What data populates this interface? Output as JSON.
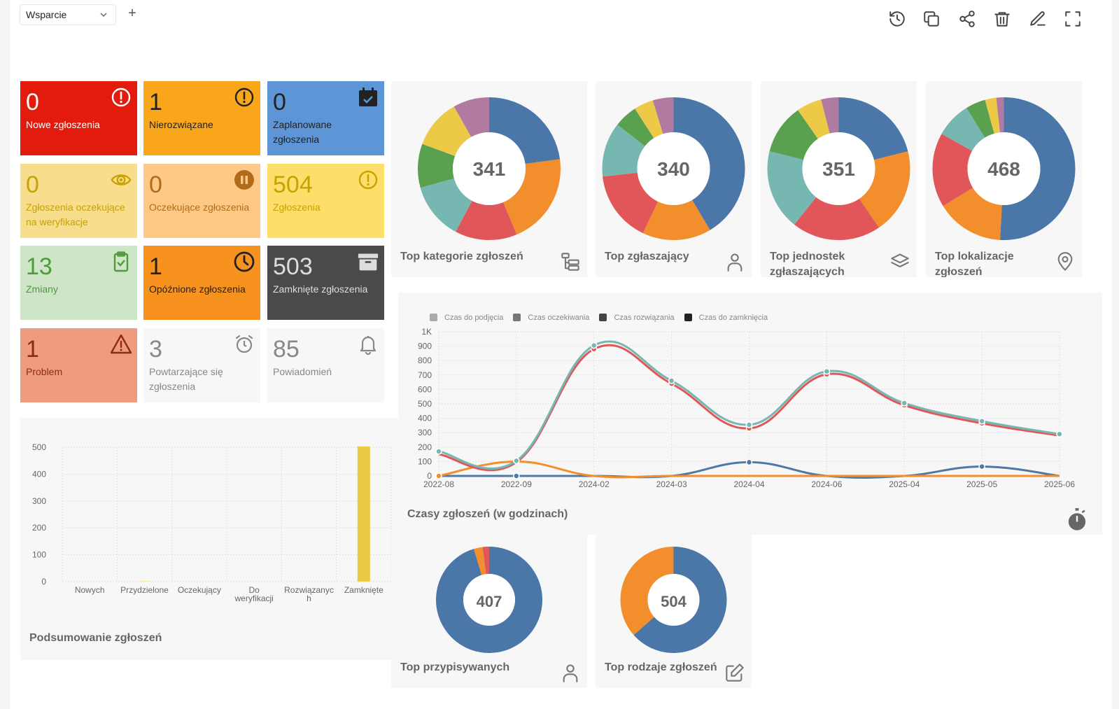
{
  "toolbar": {
    "dashboard_select": "Wsparcie",
    "add_label": "+",
    "icons": [
      "history-icon",
      "copy-icon",
      "share-icon",
      "trash-icon",
      "edit-icon",
      "fullscreen-icon"
    ]
  },
  "tiles": [
    {
      "value": "0",
      "label": "Nowe zgłoszenia",
      "bg": "#e21b0d",
      "fg": "#ffffff",
      "icon": "alert-circle-icon"
    },
    {
      "value": "1",
      "label": "Nierozwiązane",
      "bg": "#faa61a",
      "fg": "#222222",
      "icon": "alert-circle-icon"
    },
    {
      "value": "0",
      "label": "Zaplanowane zgłoszenia",
      "bg": "#5d95d6",
      "fg": "#222222",
      "icon": "calendar-check-icon"
    },
    {
      "value": "0",
      "label": "Zgłoszenia oczekujące na weryfikacje",
      "bg": "#f7dd8c",
      "fg": "#c7a200",
      "icon": "eye-icon"
    },
    {
      "value": "0",
      "label": "Oczekujące zgłoszenia",
      "bg": "#fec987",
      "fg": "#b26b18",
      "icon": "pause-circle-icon"
    },
    {
      "value": "504",
      "label": "Zgłoszenia",
      "bg": "#fede6b",
      "fg": "#c7a200",
      "icon": "alert-circle-icon"
    },
    {
      "value": "13",
      "label": "Zmiany",
      "bg": "#cfe5c8",
      "fg": "#4e9a3c",
      "icon": "clipboard-check-icon"
    },
    {
      "value": "1",
      "label": "Opóźnione zgłoszenia",
      "bg": "#f7921e",
      "fg": "#222222",
      "icon": "clock-icon"
    },
    {
      "value": "503",
      "label": "Zamknięte zgłoszenia",
      "bg": "#4a4a4a",
      "fg": "#dddddd",
      "icon": "archive-icon"
    },
    {
      "value": "1",
      "label": "Problem",
      "bg": "#ef9b7e",
      "fg": "#8e2b18",
      "icon": "warning-triangle-icon"
    },
    {
      "value": "3",
      "label": "Powtarzające się zgłoszenia",
      "bg": "#f7f7f7",
      "fg": "#888888",
      "icon": "alarm-clock-icon"
    },
    {
      "value": "85",
      "label": "Powiadomień",
      "bg": "#f7f7f7",
      "fg": "#888888",
      "icon": "bell-icon"
    }
  ],
  "donuts": [
    {
      "title": "Top kategorie zgłoszeń",
      "total": "341",
      "icon": "sitemap-icon",
      "slices": [
        {
          "v": 78,
          "c": "#4a76a8"
        },
        {
          "v": 71,
          "c": "#f28e2b"
        },
        {
          "v": 48,
          "c": "#e15759"
        },
        {
          "v": 44,
          "c": "#76b7b2"
        },
        {
          "v": 34,
          "c": "#59a14f"
        },
        {
          "v": 38,
          "c": "#edc948"
        },
        {
          "v": 28,
          "c": "#b07aa1"
        }
      ]
    },
    {
      "title": "Top zgłaszający",
      "total": "340",
      "icon": "user-icon",
      "slices": [
        {
          "v": 141,
          "c": "#4a76a8"
        },
        {
          "v": 53,
          "c": "#f28e2b"
        },
        {
          "v": 55,
          "c": "#e15759"
        },
        {
          "v": 42,
          "c": "#76b7b2"
        },
        {
          "v": 18,
          "c": "#59a14f"
        },
        {
          "v": 15,
          "c": "#edc948"
        },
        {
          "v": 16,
          "c": "#b07aa1"
        }
      ]
    },
    {
      "title": "Top jednostek zgłaszających",
      "total": "351",
      "icon": "layers-icon",
      "slices": [
        {
          "v": 74,
          "c": "#4a76a8"
        },
        {
          "v": 68,
          "c": "#f28e2b"
        },
        {
          "v": 71,
          "c": "#e15759"
        },
        {
          "v": 64,
          "c": "#76b7b2"
        },
        {
          "v": 40,
          "c": "#59a14f"
        },
        {
          "v": 20,
          "c": "#edc948"
        },
        {
          "v": 14,
          "c": "#b07aa1"
        }
      ]
    },
    {
      "title": "Top lokalizacje zgłoszeń",
      "total": "468",
      "icon": "map-pin-icon",
      "slices": [
        {
          "v": 238,
          "c": "#4a76a8"
        },
        {
          "v": 72,
          "c": "#f28e2b"
        },
        {
          "v": 79,
          "c": "#e15759"
        },
        {
          "v": 38,
          "c": "#76b7b2"
        },
        {
          "v": 21,
          "c": "#59a14f"
        },
        {
          "v": 12,
          "c": "#edc948"
        },
        {
          "v": 8,
          "c": "#b07aa1"
        }
      ]
    },
    {
      "title": "Top przypisywanych",
      "total": "407",
      "icon": "user-icon",
      "slices": [
        {
          "v": 388,
          "c": "#4a76a8"
        },
        {
          "v": 11,
          "c": "#f28e2b"
        },
        {
          "v": 8,
          "c": "#e15759"
        }
      ]
    },
    {
      "title": "Top rodzaje zgłoszeń",
      "total": "504",
      "icon": "edit-icon",
      "slices": [
        {
          "v": 320,
          "c": "#4a76a8"
        },
        {
          "v": 184,
          "c": "#f28e2b"
        }
      ]
    }
  ],
  "line_chart": {
    "title": "Czasy zgłoszeń (w godzinach)",
    "icon": "stopwatch-icon",
    "chart_data": {
      "type": "line",
      "categories": [
        "2022-08",
        "2022-09",
        "2024-02",
        "2024-03",
        "2024-04",
        "2024-06",
        "2025-04",
        "2025-05",
        "2025-06"
      ],
      "ylim": [
        0,
        1000
      ],
      "yticks": [
        "0",
        "100",
        "200",
        "300",
        "400",
        "500",
        "600",
        "700",
        "800",
        "900",
        "1K"
      ],
      "legend": [
        {
          "name": "Czas do podjęcia",
          "color": "#aaaaaa"
        },
        {
          "name": "Czas oczekiwania",
          "color": "#777777"
        },
        {
          "name": "Czas rozwiązania",
          "color": "#444444"
        },
        {
          "name": "Czas do zamknięcia",
          "color": "#222222"
        }
      ],
      "series": [
        {
          "color": "#4e79a7",
          "values": [
            0,
            0,
            0,
            0,
            95,
            0,
            0,
            65,
            0
          ],
          "markers": [
            1,
            1,
            0,
            0,
            1,
            0,
            0,
            1,
            0
          ]
        },
        {
          "color": "#f28e2b",
          "values": [
            0,
            100,
            0,
            0,
            0,
            0,
            0,
            0,
            0
          ],
          "markers": [
            1,
            1,
            0,
            0,
            0,
            0,
            0,
            0,
            0
          ]
        },
        {
          "color": "#e15759",
          "values": [
            150,
            95,
            880,
            640,
            330,
            705,
            490,
            365,
            280
          ],
          "markers": [
            0,
            0,
            1,
            1,
            1,
            1,
            1,
            1,
            0
          ]
        },
        {
          "color": "#76b7b2",
          "values": [
            170,
            105,
            905,
            660,
            355,
            725,
            505,
            380,
            290
          ],
          "markers": [
            1,
            1,
            1,
            1,
            1,
            1,
            1,
            1,
            1
          ]
        }
      ]
    }
  },
  "bar_chart": {
    "title": "Podsumowanie zgłoszeń",
    "chart_data": {
      "type": "bar",
      "categories": [
        "Nowych",
        "Przydzielone",
        "Oczekujący",
        "Do weryfikacji",
        "Rozwiązanych",
        "Zamknięte"
      ],
      "category_lines": [
        [
          "Nowych"
        ],
        [
          "Przydzielone"
        ],
        [
          "Oczekujący"
        ],
        [
          "Do",
          "weryfikacji"
        ],
        [
          "Rozwiązanyc",
          "h"
        ],
        [
          "Zamknięte"
        ]
      ],
      "values": [
        0,
        1,
        0,
        0,
        0,
        503
      ],
      "ylim": [
        0,
        500
      ],
      "yticks": [
        "0",
        "100",
        "200",
        "300",
        "400",
        "500"
      ],
      "color": "#edc948"
    }
  }
}
